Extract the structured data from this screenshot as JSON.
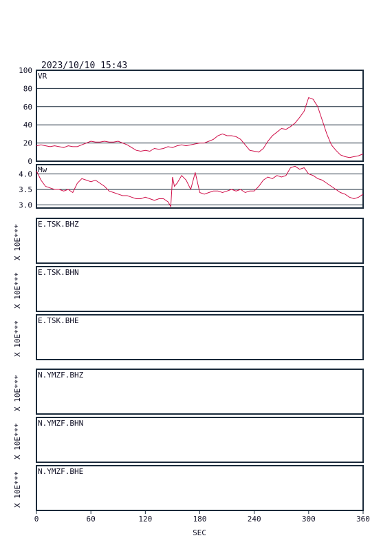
{
  "header": {
    "timestamp": "2023/10/10  15:43"
  },
  "chart_data": [
    {
      "type": "line",
      "label": "VR",
      "ylim": [
        0,
        100
      ],
      "yticks": [
        0,
        20,
        40,
        60,
        80,
        100
      ],
      "grid": true,
      "x": [
        0,
        5,
        10,
        15,
        20,
        25,
        30,
        35,
        40,
        45,
        50,
        55,
        60,
        65,
        70,
        75,
        80,
        85,
        90,
        95,
        100,
        105,
        110,
        115,
        120,
        125,
        130,
        135,
        140,
        145,
        150,
        155,
        160,
        165,
        170,
        175,
        180,
        185,
        190,
        195,
        200,
        205,
        210,
        215,
        220,
        225,
        230,
        235,
        240,
        245,
        250,
        255,
        260,
        265,
        270,
        275,
        280,
        285,
        290,
        295,
        300,
        305,
        310,
        315,
        320,
        325,
        330,
        335,
        340,
        345,
        350,
        355,
        360
      ],
      "values": [
        17,
        18,
        17,
        16,
        17,
        16,
        15,
        17,
        16,
        16,
        18,
        20,
        22,
        21,
        21,
        22,
        21,
        21,
        22,
        20,
        18,
        15,
        12,
        11,
        12,
        11,
        14,
        13,
        14,
        16,
        15,
        17,
        18,
        17,
        18,
        19,
        20,
        20,
        22,
        24,
        28,
        30,
        28,
        28,
        27,
        24,
        18,
        12,
        11,
        10,
        14,
        22,
        28,
        32,
        36,
        35,
        38,
        42,
        48,
        55,
        70,
        68,
        60,
        45,
        30,
        18,
        12,
        7,
        5,
        4,
        5,
        6,
        8
      ]
    },
    {
      "type": "line",
      "label": "Mw",
      "ylim": [
        2.9,
        4.3
      ],
      "yticks": [
        "4.0",
        "3.5",
        "3.0"
      ],
      "grid": true,
      "x": [
        0,
        5,
        10,
        15,
        20,
        25,
        30,
        35,
        40,
        45,
        50,
        55,
        60,
        65,
        70,
        75,
        80,
        85,
        90,
        95,
        100,
        105,
        110,
        115,
        120,
        125,
        130,
        135,
        140,
        145,
        148,
        150,
        152,
        155,
        160,
        165,
        170,
        175,
        180,
        185,
        190,
        195,
        200,
        205,
        210,
        215,
        220,
        225,
        230,
        235,
        240,
        245,
        250,
        255,
        260,
        265,
        270,
        275,
        280,
        285,
        290,
        295,
        300,
        305,
        310,
        315,
        320,
        325,
        330,
        335,
        340,
        345,
        350,
        355,
        360
      ],
      "values": [
        4.1,
        3.8,
        3.6,
        3.55,
        3.5,
        3.5,
        3.45,
        3.5,
        3.4,
        3.7,
        3.85,
        3.8,
        3.75,
        3.8,
        3.7,
        3.6,
        3.45,
        3.4,
        3.35,
        3.3,
        3.3,
        3.25,
        3.2,
        3.2,
        3.25,
        3.2,
        3.15,
        3.2,
        3.2,
        3.1,
        2.95,
        3.9,
        3.6,
        3.7,
        3.95,
        3.8,
        3.5,
        4.05,
        3.4,
        3.35,
        3.4,
        3.45,
        3.45,
        3.4,
        3.45,
        3.5,
        3.45,
        3.5,
        3.4,
        3.45,
        3.45,
        3.6,
        3.8,
        3.9,
        3.85,
        3.95,
        3.9,
        3.95,
        4.2,
        4.25,
        4.15,
        4.2,
        4.0,
        3.95,
        3.85,
        3.8,
        3.7,
        3.6,
        3.5,
        3.4,
        3.35,
        3.25,
        3.2,
        3.25,
        3.35
      ]
    }
  ],
  "stations": [
    {
      "name": "E.TSK.BHZ",
      "scale": "X 10E***"
    },
    {
      "name": "E.TSK.BHN",
      "scale": "X 10E***"
    },
    {
      "name": "E.TSK.BHE",
      "scale": "X 10E***"
    },
    {
      "name": "N.YMZF.BHZ",
      "scale": "X 10E***"
    },
    {
      "name": "N.YMZF.BHN",
      "scale": "X 10E***"
    },
    {
      "name": "N.YMZF.BHE",
      "scale": "X 10E***"
    }
  ],
  "x_axis": {
    "ticks": [
      "0",
      "60",
      "120",
      "180",
      "240",
      "300",
      "360"
    ],
    "range": [
      0,
      360
    ],
    "label": "SEC"
  },
  "colors": {
    "trace": "#d0104a",
    "frame": "#1a2a3a",
    "background": "#ffffff"
  }
}
